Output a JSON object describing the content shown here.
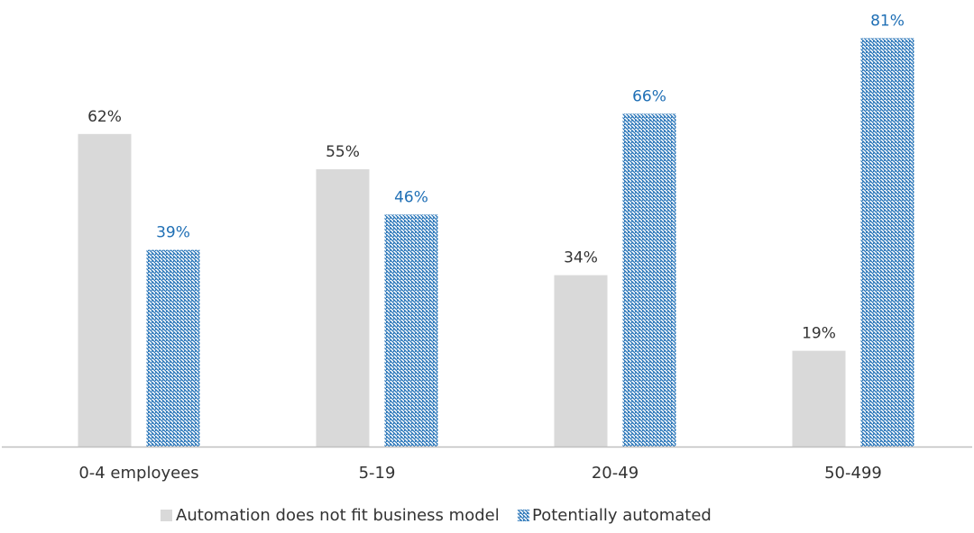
{
  "colors": {
    "series_1": "#d9d9d9",
    "series_2": "#1f6fb5",
    "label_series_1": "#333333",
    "label_series_2": "#1f6fb5",
    "axis": "#bfbfbf"
  },
  "chart_data": {
    "type": "bar",
    "title": "",
    "xlabel": "",
    "ylabel": "",
    "categories": [
      "0-4 employees",
      "5-19",
      "20-49",
      "50-499"
    ],
    "series": [
      {
        "name": "Automation does not fit business model",
        "values": [
          62,
          55,
          34,
          19
        ],
        "labels": [
          "62%",
          "55%",
          "34%",
          "19%"
        ],
        "fill": "solid"
      },
      {
        "name": "Potentially automated",
        "values": [
          39,
          46,
          66,
          81
        ],
        "labels": [
          "39%",
          "46%",
          "66%",
          "81%"
        ],
        "fill": "diagonal-hatch"
      }
    ],
    "ylim": [
      0,
      100
    ],
    "grid": false,
    "legend_position": "bottom-center"
  }
}
